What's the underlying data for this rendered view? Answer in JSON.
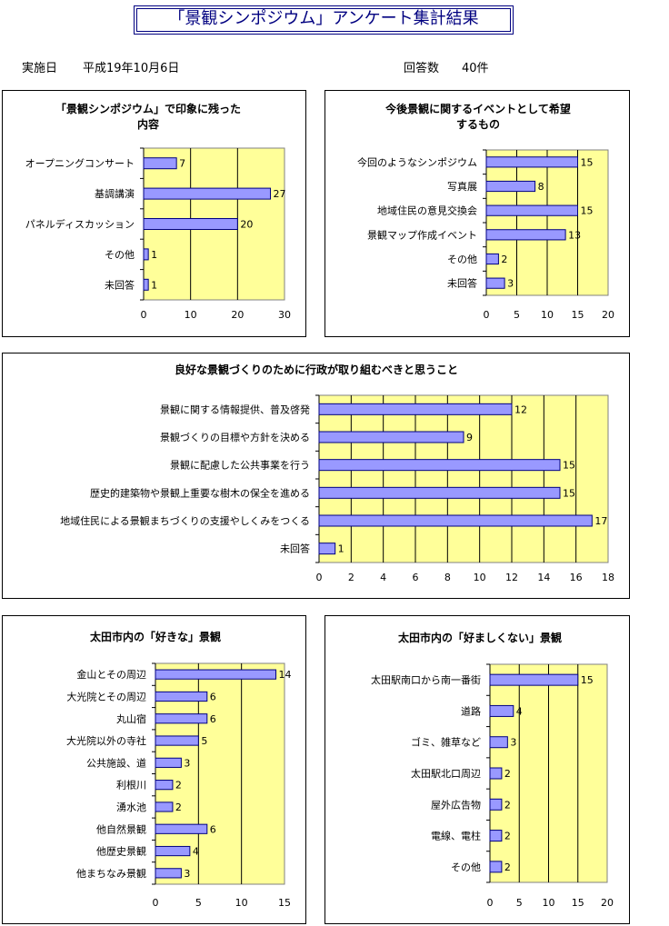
{
  "header": {
    "title": "「景観シンポジウム」アンケート集計結果",
    "date_label": "実施日",
    "date_value": "平成19年10月6日",
    "count_label": "回答数",
    "count_value": "40件"
  },
  "colors": {
    "plot_bg": "#FFFF99",
    "bar": "#9999FF",
    "bar_border": "#000080",
    "title": "#000080"
  },
  "chart_data": [
    {
      "type": "bar",
      "orientation": "horizontal",
      "title_lines": [
        "「景観シンポジウム」で印象に残った",
        "内容"
      ],
      "categories": [
        "オープニングコンサート",
        "基調講演",
        "パネルディスカッション",
        "その他",
        "未回答"
      ],
      "values": [
        7,
        27,
        20,
        1,
        1
      ],
      "xlim": [
        0,
        30
      ],
      "ticks": [
        0,
        10,
        20,
        30
      ]
    },
    {
      "type": "bar",
      "orientation": "horizontal",
      "title_lines": [
        "今後景観に関するイベントとして希望",
        "するもの"
      ],
      "categories": [
        "今回のようなシンポジウム",
        "写真展",
        "地域住民の意見交換会",
        "景観マップ作成イベント",
        "その他",
        "未回答"
      ],
      "values": [
        15,
        8,
        15,
        13,
        2,
        3
      ],
      "xlim": [
        0,
        20
      ],
      "ticks": [
        0,
        5,
        10,
        15,
        20
      ]
    },
    {
      "type": "bar",
      "orientation": "horizontal",
      "title_lines": [
        "良好な景観づくりのために行政が取り組むべきと思うこと"
      ],
      "categories": [
        "景観に関する情報提供、普及啓発",
        "景観づくりの目標や方針を決める",
        "景観に配慮した公共事業を行う",
        "歴史的建築物や景観上重要な樹木の保全を進める",
        "地域住民による景観まちづくりの支援やしくみをつくる",
        "未回答"
      ],
      "values": [
        12,
        9,
        15,
        15,
        17,
        1
      ],
      "xlim": [
        0,
        18
      ],
      "ticks": [
        0,
        2,
        4,
        6,
        8,
        10,
        12,
        14,
        16,
        18
      ]
    },
    {
      "type": "bar",
      "orientation": "horizontal",
      "title_lines": [
        "太田市内の「好きな」景観"
      ],
      "categories": [
        "金山とその周辺",
        "大光院とその周辺",
        "丸山宿",
        "大光院以外の寺社",
        "公共施設、道",
        "利根川",
        "湧水池",
        "他自然景観",
        "他歴史景観",
        "他まちなみ景観"
      ],
      "values": [
        14,
        6,
        6,
        5,
        3,
        2,
        2,
        6,
        4,
        3
      ],
      "xlim": [
        0,
        15
      ],
      "ticks": [
        0,
        5,
        10,
        15
      ]
    },
    {
      "type": "bar",
      "orientation": "horizontal",
      "title_lines": [
        "太田市内の「好ましくない」景観"
      ],
      "categories": [
        "太田駅南口から南一番街",
        "道路",
        "ゴミ、雑草など",
        "太田駅北口周辺",
        "屋外広告物",
        "電線、電柱",
        "その他"
      ],
      "values": [
        15,
        4,
        3,
        2,
        2,
        2,
        2
      ],
      "xlim": [
        0,
        20
      ],
      "ticks": [
        0,
        5,
        10,
        15,
        20
      ]
    }
  ]
}
